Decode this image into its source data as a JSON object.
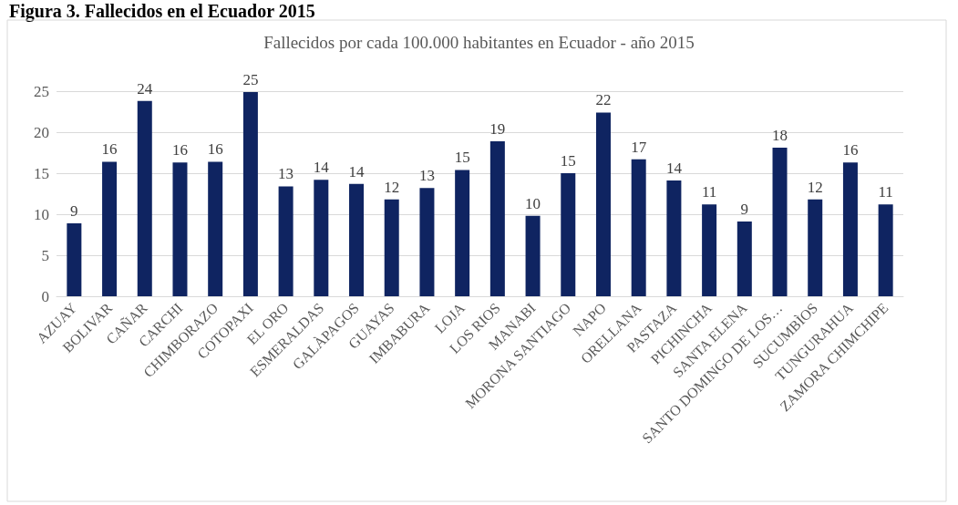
{
  "chart_data": {
    "type": "bar",
    "title": "Fallecidos por cada 100.000 habitantes en Ecuador - año 2015",
    "annotations": [
      "Figura 3. Fallecidos en el Ecuador 2015"
    ],
    "categories": [
      "AZUAY",
      "BOLIVAR",
      "CAÑAR",
      "CARCHI",
      "CHIMBORAZO",
      "COTOPAXI",
      "EL ORO",
      "ESMERALDAS",
      "GALÀPAGOS",
      "GUAYAS",
      "IMBABURA",
      "LOJA",
      "LOS RIOS",
      "MANABI",
      "MORONA SANTIAGO",
      "NAPO",
      "ORELLANA",
      "PASTAZA",
      "PICHINCHA",
      "SANTA ELENA",
      "SANTO DOMINGO DE LOS…",
      "SUCUMBÌOS",
      "TUNGURAHUA",
      "ZAMORA CHIMCHIPE"
    ],
    "values": [
      8.9,
      16.4,
      23.8,
      16.3,
      16.4,
      24.9,
      13.4,
      14.2,
      13.7,
      11.8,
      13.2,
      15.4,
      18.9,
      9.8,
      15.0,
      22.4,
      16.7,
      14.1,
      11.2,
      9.1,
      18.1,
      11.8,
      16.3,
      11.2
    ],
    "value_labels": [
      "9",
      "16",
      "24",
      "16",
      "16",
      "25",
      "13",
      "14",
      "14",
      "12",
      "13",
      "15",
      "19",
      "10",
      "15",
      "22",
      "17",
      "14",
      "11",
      "9",
      "18",
      "12",
      "16",
      "11"
    ],
    "color": "#0f2461",
    "ylim": [
      0,
      25
    ],
    "yticks": [
      0,
      5,
      10,
      15,
      20,
      25
    ],
    "grid": "y"
  }
}
